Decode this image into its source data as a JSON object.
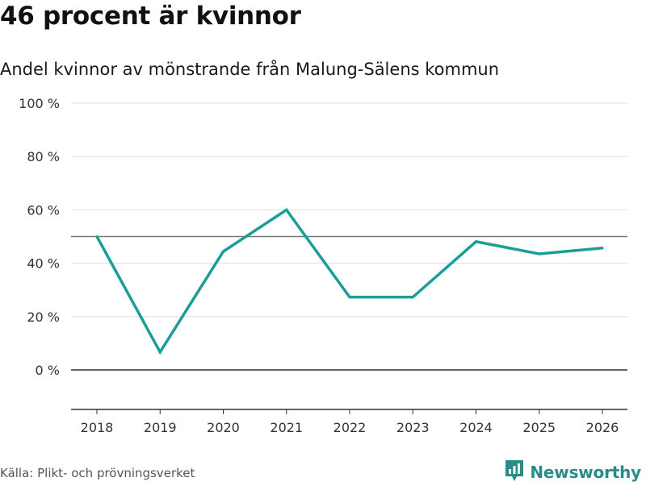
{
  "title": "46 procent är kvinnor",
  "subtitle": "Andel kvinnor av mönstrande från Malung-Sälens kommun",
  "source": "Källa: Plikt- och prövningsverket",
  "brand": {
    "name": "Newsworthy",
    "icon": "bar-chart-logo-icon",
    "color": "#2a8c86"
  },
  "chart_data": {
    "type": "line",
    "title": "46 procent är kvinnor",
    "subtitle": "Andel kvinnor av mönstrande från Malung-Sälens kommun",
    "xlabel": "",
    "ylabel": "",
    "categories": [
      "2018",
      "2019",
      "2020",
      "2021",
      "2022",
      "2023",
      "2024",
      "2025",
      "2026"
    ],
    "series": [
      {
        "name": "Andel kvinnor",
        "color": "#1a9e96",
        "values": [
          50,
          6.7,
          44.4,
          60,
          27.3,
          27.3,
          48.1,
          43.5,
          45.7
        ]
      }
    ],
    "yticks": [
      0,
      20,
      40,
      60,
      80,
      100
    ],
    "ytick_labels": [
      "0 %",
      "20 %",
      "40 %",
      "60 %",
      "80 %",
      "100 %"
    ],
    "ylim": [
      -15,
      100
    ],
    "reference_line": 50,
    "grid": true
  }
}
